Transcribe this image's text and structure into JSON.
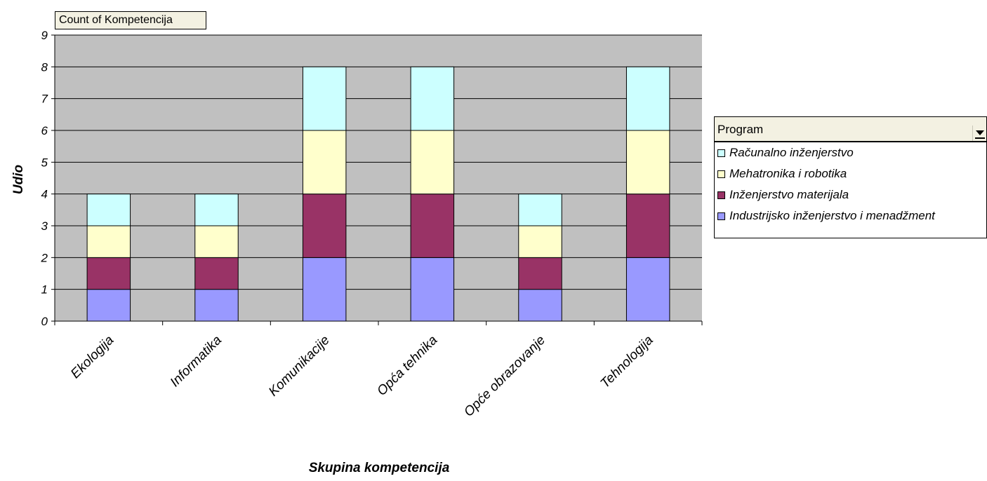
{
  "chart_data": {
    "type": "bar",
    "stacked": true,
    "field_button": "Count of Kompetencija",
    "ylabel": "Udio",
    "xlabel": "Skupina kompetencija",
    "ylim": [
      0,
      9
    ],
    "yticks": [
      "0",
      "1",
      "2",
      "3",
      "4",
      "5",
      "6",
      "7",
      "8",
      "9"
    ],
    "grid": true,
    "legend_position": "right",
    "legend_title": "Program",
    "categories": [
      "Ekologija",
      "Informatika",
      "Komunikacije",
      "Opća tehnika",
      "Opće obrazovanje",
      "Tehnologija"
    ],
    "series": [
      {
        "name": "Industrijsko inženjerstvo i menadžment",
        "color": "#9999ff",
        "values": [
          1,
          1,
          2,
          2,
          1,
          2
        ]
      },
      {
        "name": "Inženjerstvo materijala",
        "color": "#993366",
        "values": [
          1,
          1,
          2,
          2,
          1,
          2
        ]
      },
      {
        "name": "Mehatronika i robotika",
        "color": "#ffffcc",
        "values": [
          1,
          1,
          2,
          2,
          1,
          2
        ]
      },
      {
        "name": "Računalno inženjerstvo",
        "color": "#ccffff",
        "values": [
          1,
          1,
          2,
          2,
          1,
          2
        ]
      }
    ],
    "legend_order": [
      3,
      2,
      1,
      0
    ],
    "plot_background": "#c0c0c0"
  }
}
